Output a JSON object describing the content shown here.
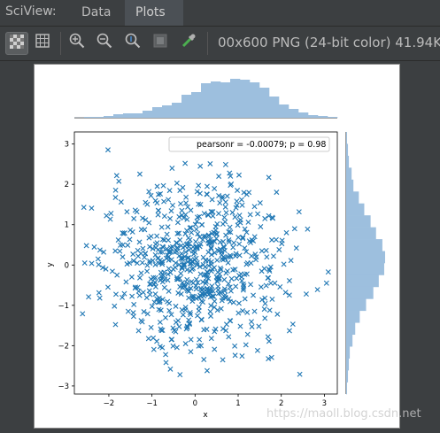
{
  "header": {
    "title": "SciView:",
    "tabs": [
      {
        "label": "Data",
        "active": false
      },
      {
        "label": "Plots",
        "active": true
      }
    ]
  },
  "toolbar": {
    "buttons": [
      {
        "icon": "checkerboard-icon",
        "active": true
      },
      {
        "icon": "grid-icon",
        "active": false
      },
      {
        "icon": "zoom-in-icon",
        "active": false
      },
      {
        "icon": "zoom-out-icon",
        "active": false
      },
      {
        "icon": "actual-size-icon",
        "active": false
      },
      {
        "icon": "fit-icon",
        "active": false
      },
      {
        "icon": "color-picker-icon",
        "active": false
      }
    ],
    "image_info": "00x600 PNG (24-bit color) 41.94K"
  },
  "watermark": "https://maoll.blog.csdn.net",
  "chart_data": {
    "type": "scatter",
    "title": "",
    "xlabel": "x",
    "ylabel": "y",
    "xlim": [
      -2.8,
      3.3
    ],
    "ylim": [
      -3.2,
      3.3
    ],
    "x_ticks": [
      -2,
      -1,
      0,
      1,
      2,
      3
    ],
    "y_ticks": [
      -3,
      -2,
      -1,
      0,
      1,
      2,
      3
    ],
    "annotation": "pearsonr = -0.00079; p = 0.98",
    "marker": "x",
    "marker_color": "#1f77b4",
    "hist_color": "#9dbfde",
    "marginal_x_hist": [
      0.2,
      1,
      1,
      2,
      4,
      5,
      5,
      8,
      12,
      14,
      17,
      26,
      29,
      39,
      41,
      40,
      44,
      43,
      40,
      34,
      24,
      15,
      10,
      6,
      3,
      2,
      1
    ],
    "marginal_y_hist": [
      1,
      2,
      3,
      6,
      8,
      14,
      20,
      27,
      33,
      40,
      43,
      42,
      36,
      30,
      22,
      15,
      10,
      7,
      4,
      3,
      2,
      1
    ],
    "points_note_excluded": true,
    "points": [
      [
        0.12,
        2.45
      ],
      [
        0.71,
        2.49
      ],
      [
        0.8,
        2.28
      ],
      [
        0.35,
        2.51
      ],
      [
        -0.23,
        2.52
      ],
      [
        0.55,
        2.2
      ],
      [
        1.02,
        2.23
      ],
      [
        -0.42,
        2.03
      ],
      [
        1.25,
        1.8
      ],
      [
        1.2,
        1.75
      ],
      [
        -1.07,
        1.82
      ],
      [
        0.98,
        1.85
      ],
      [
        -0.21,
        1.68
      ],
      [
        -2.58,
        1.43
      ],
      [
        -2.4,
        1.41
      ],
      [
        -1.95,
        1.28
      ],
      [
        -1.58,
        1.32
      ],
      [
        -1.35,
        1.32
      ],
      [
        -0.58,
        1.15
      ],
      [
        0.1,
        1.2
      ],
      [
        0.71,
        1.56
      ],
      [
        1.51,
        1.54
      ],
      [
        1.71,
        1.22
      ],
      [
        2.31,
        0.9
      ],
      [
        2.12,
        0.8
      ],
      [
        2.61,
        0.89
      ],
      [
        2.02,
        0.61
      ],
      [
        1.82,
        0.22
      ],
      [
        2.35,
        0.42
      ],
      [
        2.06,
        0.02
      ],
      [
        2.84,
        -0.61
      ],
      [
        2.58,
        -0.72
      ],
      [
        3.05,
        -0.45
      ],
      [
        2.19,
        -0.39
      ],
      [
        1.72,
        -0.11
      ],
      [
        1.65,
        -0.51
      ],
      [
        -2.52,
        0.48
      ],
      [
        -2.12,
        0.32
      ],
      [
        -1.78,
        0.62
      ],
      [
        -1.68,
        0.2
      ],
      [
        -2.56,
        0.05
      ],
      [
        -2.07,
        -0.1
      ],
      [
        -1.81,
        -0.25
      ],
      [
        -2.47,
        -0.79
      ],
      [
        -2.61,
        -1.21
      ],
      [
        -2.21,
        -0.82
      ],
      [
        -1.87,
        -1.02
      ],
      [
        -1.64,
        -0.71
      ],
      [
        -1.31,
        -1.63
      ],
      [
        -0.97,
        -1.81
      ],
      [
        -0.76,
        -2.05
      ],
      [
        -0.51,
        -2.01
      ],
      [
        -0.35,
        -2.72
      ],
      [
        -0.1,
        -2.15
      ],
      [
        0.28,
        -2.62
      ],
      [
        0.45,
        -2.09
      ],
      [
        0.93,
        -2.24
      ],
      [
        1.18,
        -1.98
      ],
      [
        1.45,
        -2.12
      ],
      [
        2.43,
        -2.71
      ],
      [
        2.19,
        -1.63
      ],
      [
        1.91,
        -1.22
      ],
      [
        1.62,
        -1.32
      ],
      [
        1.32,
        -1.53
      ],
      [
        0.81,
        -1.38
      ],
      [
        0.52,
        -1.12
      ],
      [
        0.18,
        -0.92
      ],
      [
        -0.22,
        -1.05
      ],
      [
        -0.55,
        -1.23
      ],
      [
        -0.82,
        -0.92
      ],
      [
        -1.12,
        -0.81
      ],
      [
        -1.38,
        -0.55
      ],
      [
        -0.75,
        -0.42
      ],
      [
        -0.42,
        -0.31
      ],
      [
        -0.11,
        -0.15
      ],
      [
        0.21,
        -0.25
      ],
      [
        0.52,
        -0.41
      ],
      [
        0.81,
        -0.55
      ],
      [
        1.08,
        -0.3
      ],
      [
        1.22,
        0.05
      ],
      [
        0.95,
        0.28
      ],
      [
        0.62,
        0.15
      ],
      [
        0.31,
        0.32
      ],
      [
        0.02,
        0.45
      ],
      [
        -0.31,
        0.28
      ],
      [
        -0.61,
        0.12
      ],
      [
        -0.92,
        0.25
      ],
      [
        -1.21,
        0.41
      ],
      [
        -1.02,
        0.71
      ],
      [
        -0.71,
        0.62
      ],
      [
        -0.41,
        0.78
      ],
      [
        -0.12,
        0.92
      ],
      [
        0.2,
        0.71
      ],
      [
        0.48,
        0.95
      ],
      [
        0.78,
        0.82
      ],
      [
        1.05,
        1.05
      ],
      [
        1.32,
        0.62
      ],
      [
        1.55,
        0.35
      ],
      [
        1.35,
        -0.75
      ],
      [
        1.02,
        -0.95
      ],
      [
        0.71,
        -0.82
      ],
      [
        0.35,
        -0.62
      ],
      [
        0.02,
        -0.52
      ],
      [
        -0.32,
        -0.72
      ],
      [
        -0.61,
        -0.65
      ],
      [
        -0.95,
        -0.48
      ],
      [
        -1.25,
        -0.2
      ],
      [
        -1.52,
        0.05
      ],
      [
        -1.45,
        0.82
      ],
      [
        -1.15,
        1.12
      ],
      [
        -0.85,
        1.35
      ],
      [
        -0.52,
        1.48
      ],
      [
        -0.22,
        1.25
      ],
      [
        0.08,
        1.51
      ],
      [
        0.41,
        1.32
      ],
      [
        0.68,
        1.18
      ],
      [
        0.95,
        1.42
      ],
      [
        1.28,
        1.25
      ],
      [
        1.52,
        0.95
      ],
      [
        1.78,
        0.62
      ],
      [
        0.15,
        -1.35
      ],
      [
        -0.18,
        -1.52
      ],
      [
        -0.48,
        -1.62
      ],
      [
        -0.81,
        -1.42
      ],
      [
        -1.1,
        -1.21
      ],
      [
        -1.42,
        -0.98
      ],
      [
        0.45,
        -1.65
      ],
      [
        0.78,
        -1.78
      ],
      [
        1.05,
        -1.52
      ],
      [
        1.38,
        -1.15
      ],
      [
        1.62,
        -0.82
      ],
      [
        1.85,
        -0.45
      ],
      [
        0.05,
        0.05
      ],
      [
        0.25,
        0.12
      ],
      [
        -0.15,
        0.18
      ],
      [
        0.4,
        -0.1
      ],
      [
        -0.3,
        -0.05
      ],
      [
        0.55,
        0.35
      ],
      [
        -0.52,
        0.45
      ],
      [
        0.72,
        -0.2
      ],
      [
        -0.72,
        -0.18
      ],
      [
        0.9,
        0.55
      ],
      [
        -0.88,
        0.55
      ],
      [
        1.15,
        0.42
      ],
      [
        -1.05,
        0.05
      ],
      [
        0.3,
        0.6
      ],
      [
        -0.35,
        0.62
      ],
      [
        0.6,
        -0.7
      ],
      [
        -0.6,
        -0.95
      ],
      [
        0.12,
        -0.75
      ],
      [
        -0.05,
        0.35
      ],
      [
        0.18,
        -0.42
      ],
      [
        -0.25,
        -0.48
      ],
      [
        0.38,
        0.08
      ],
      [
        -0.45,
        0.05
      ],
      [
        0.65,
        0.58
      ],
      [
        0.88,
        -0.12
      ],
      [
        -0.92,
        -0.72
      ],
      [
        1.12,
        -0.62
      ],
      [
        -1.32,
        0.22
      ],
      [
        1.42,
        0.2
      ],
      [
        -1.6,
        -0.42
      ],
      [
        1.7,
        -0.32
      ],
      [
        -1.85,
        0.35
      ],
      [
        1.95,
        0.38
      ],
      [
        -2.02,
        -0.55
      ],
      [
        2.1,
        -0.68
      ],
      [
        -2.25,
        0.15
      ],
      [
        0.05,
        1.82
      ],
      [
        0.28,
        1.95
      ],
      [
        -0.35,
        1.85
      ],
      [
        0.55,
        1.72
      ],
      [
        -0.62,
        1.62
      ],
      [
        0.82,
        1.98
      ],
      [
        -0.85,
        1.75
      ],
      [
        1.08,
        1.62
      ],
      [
        -1.15,
        1.55
      ],
      [
        1.38,
        1.45
      ],
      [
        -1.42,
        1.15
      ],
      [
        1.62,
        1.15
      ],
      [
        0.1,
        -1.85
      ],
      [
        -0.22,
        -1.95
      ],
      [
        0.38,
        -1.82
      ],
      [
        -0.55,
        -1.85
      ],
      [
        0.65,
        -1.58
      ],
      [
        -0.78,
        -1.62
      ],
      [
        0.92,
        -2.01
      ],
      [
        -1.02,
        -1.55
      ],
      [
        1.22,
        -1.72
      ],
      [
        -1.25,
        -1.38
      ],
      [
        1.48,
        -1.52
      ],
      [
        -1.55,
        -1.15
      ]
    ]
  }
}
